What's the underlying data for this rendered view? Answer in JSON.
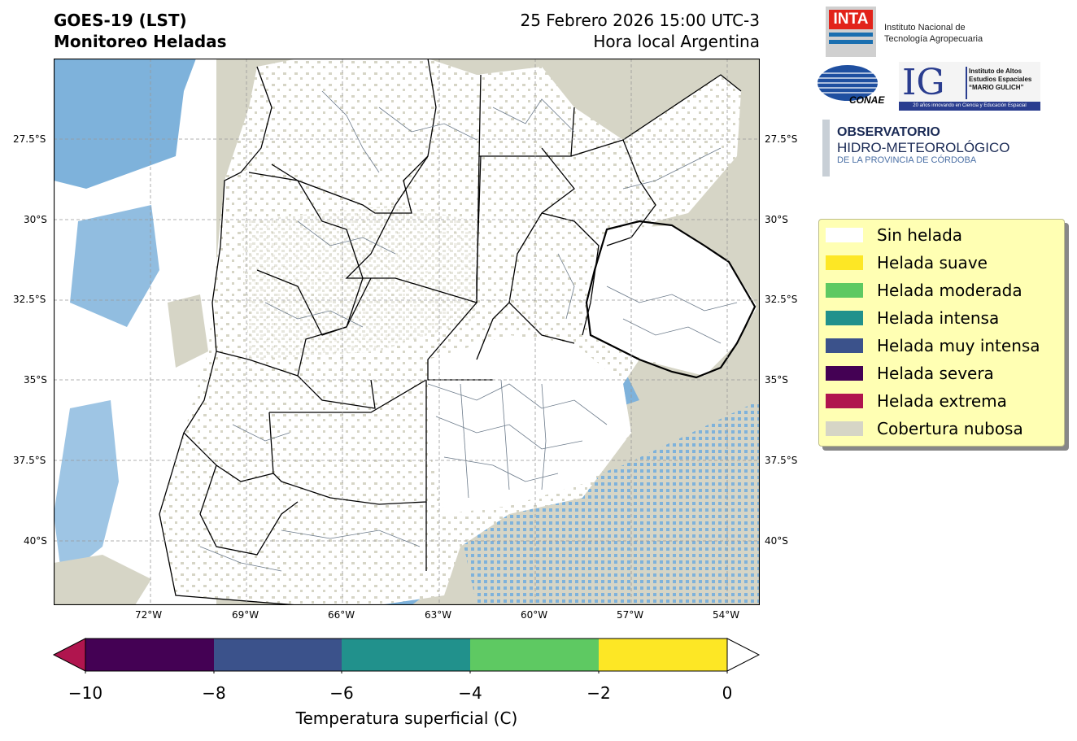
{
  "header": {
    "title_line1": "GOES-19 (LST)",
    "title_line2": "Monitoreo Heladas",
    "date_line": "25 Febrero 2026 15:00 UTC-3",
    "local_line": "Hora local Argentina"
  },
  "map": {
    "lat_ticks": [
      "27.5°S",
      "30°S",
      "32.5°S",
      "35°S",
      "37.5°S",
      "40°S"
    ],
    "lon_ticks": [
      "72°W",
      "69°W",
      "66°W",
      "63°W",
      "60°W",
      "57°W",
      "54°W"
    ],
    "colors": {
      "land": "#ffffff",
      "cloud": "#d6d5c6",
      "water": "#7eb2db",
      "border": "#000000",
      "dept": "#6b7a8a"
    }
  },
  "legend": {
    "items": [
      {
        "label": "Sin helada",
        "color": "#ffffff"
      },
      {
        "label": "Helada suave",
        "color": "#fde725"
      },
      {
        "label": "Helada moderada",
        "color": "#5ec962"
      },
      {
        "label": "Helada intensa",
        "color": "#21918c"
      },
      {
        "label": "Helada muy intensa",
        "color": "#3b528b"
      },
      {
        "label": "Helada severa",
        "color": "#440154"
      },
      {
        "label": "Helada extrema",
        "color": "#b0154e"
      },
      {
        "label": "Cobertura nubosa",
        "color": "#d6d5c6"
      }
    ]
  },
  "colorbar": {
    "ticks": [
      "−10",
      "−8",
      "−6",
      "−4",
      "−2",
      "0"
    ],
    "label": "Temperatura superficial (C)",
    "segment_colors": [
      "#440154",
      "#3b528b",
      "#21918c",
      "#5ec962",
      "#fde725"
    ],
    "under_color": "#b0154e",
    "over_color": "#ffffff"
  },
  "logos": {
    "inta_mark": "INTA",
    "inta_name_1": "Instituto Nacional de",
    "inta_name_2": "Tecnología Agropecuaria",
    "conae_mark": "CONAE",
    "ig_mark": "IG",
    "ig_name_1": "Instituto de Altos",
    "ig_name_2": "Estudios Espaciales",
    "ig_name_3": "“MARIO GULICH”",
    "ig_tagline": "20 años innovando en Ciencia y Educación Espacial",
    "obs_line1": "OBSERVATORIO",
    "obs_line2": "HIDRO-METEOROLÓGICO",
    "obs_line3": "DE LA PROVINCIA DE CÓRDOBA"
  }
}
